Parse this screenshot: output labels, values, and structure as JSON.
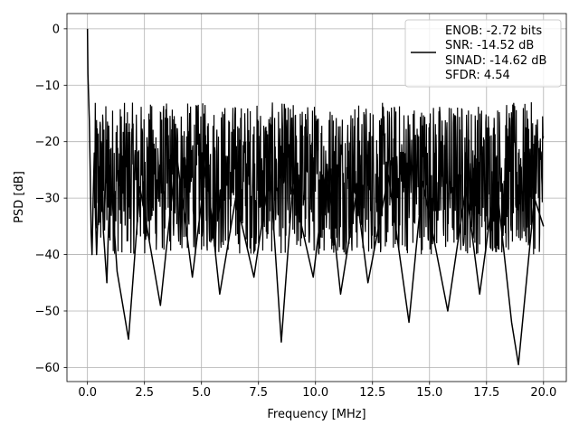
{
  "chart_data": {
    "type": "line",
    "title": "",
    "xlabel": "Frequency [MHz]",
    "ylabel": "PSD [dB]",
    "xlim": [
      -0.9,
      21.0
    ],
    "ylim": [
      -62.5,
      2.7
    ],
    "xticks": [
      0.0,
      2.5,
      5.0,
      7.5,
      10.0,
      12.5,
      15.0,
      17.5,
      20.0
    ],
    "xtick_labels": [
      "0.0",
      "2.5",
      "5.0",
      "7.5",
      "10.0",
      "12.5",
      "15.0",
      "17.5",
      "20.0"
    ],
    "yticks": [
      0,
      -10,
      -20,
      -30,
      -40,
      -50,
      -60
    ],
    "ytick_labels": [
      "0",
      "−10",
      "−20",
      "−30",
      "−40",
      "−50",
      "−60"
    ],
    "grid": true,
    "legend_placement": "top-right",
    "line_color": "#000000",
    "series": [
      {
        "name": "ENOB: -2.72 bits\nSNR: -14.52 dB\nSINAD: -14.62 dB\nSFDR: 4.54",
        "legend_lines": [
          "ENOB: -2.72 bits",
          "SNR: -14.52 dB",
          "SINAD: -14.62 dB",
          "SFDR: 4.54"
        ],
        "noise_floor_range_db": [
          -40,
          -13
        ],
        "x": [
          0.0,
          0.02,
          0.05,
          0.08,
          0.12,
          0.16,
          0.2,
          0.25,
          0.3,
          0.35,
          0.4,
          0.5,
          0.6,
          0.7,
          0.85,
          1.0,
          1.3,
          1.8,
          2.3,
          3.2,
          3.9,
          4.6,
          5.2,
          5.8,
          6.5,
          7.3,
          8.0,
          8.5,
          9.0,
          9.9,
          10.5,
          11.1,
          11.8,
          12.3,
          13.2,
          14.1,
          14.7,
          15.8,
          16.6,
          17.2,
          17.9,
          18.6,
          18.9,
          19.6,
          20.0
        ],
        "y": [
          0.0,
          -8.0,
          -12.0,
          -16.0,
          -25.0,
          -36.0,
          -40.0,
          -30.0,
          -22.0,
          -33.0,
          -40.0,
          -28.0,
          -20.0,
          -36.0,
          -45.0,
          -25.0,
          -43.0,
          -55.0,
          -28.0,
          -49.0,
          -22.0,
          -44.0,
          -24.0,
          -47.0,
          -30.0,
          -44.0,
          -25.0,
          -55.5,
          -28.0,
          -44.0,
          -24.0,
          -47.0,
          -29.0,
          -45.0,
          -26.0,
          -52.0,
          -27.0,
          -50.0,
          -28.0,
          -47.0,
          -26.0,
          -52.0,
          -59.5,
          -30.0,
          -35.0
        ]
      }
    ]
  }
}
